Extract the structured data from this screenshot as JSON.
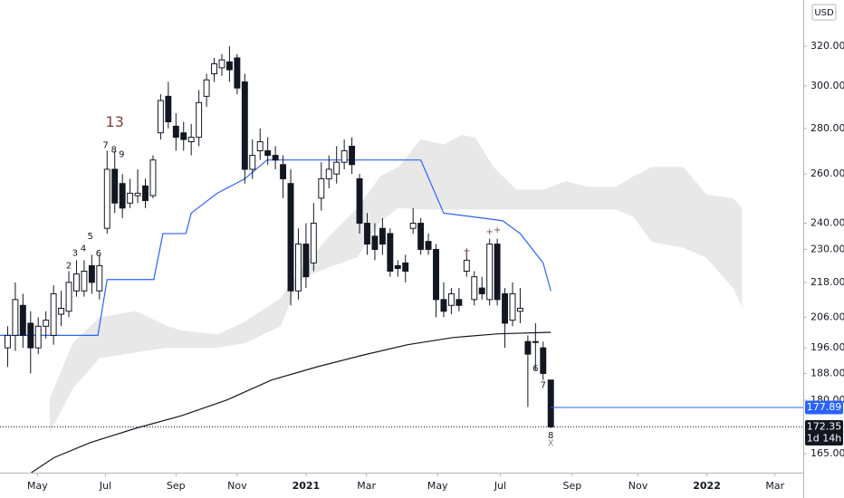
{
  "chart_data": {
    "type": "candlestick",
    "currency": "USD",
    "log_scale": true,
    "ylim": [
      160,
      345
    ],
    "yticks": [
      {
        "value": 165,
        "label": "165.00"
      },
      {
        "value": 180,
        "label": "180.00"
      },
      {
        "value": 188,
        "label": "188.00"
      },
      {
        "value": 196,
        "label": "196.00"
      },
      {
        "value": 206,
        "label": "206.00"
      },
      {
        "value": 218,
        "label": "218.00"
      },
      {
        "value": 230,
        "label": "230.00"
      },
      {
        "value": 240,
        "label": "240.00"
      },
      {
        "value": 260,
        "label": "260.00"
      },
      {
        "value": 280,
        "label": "280.00"
      },
      {
        "value": 300,
        "label": "300.00"
      },
      {
        "value": 320,
        "label": "320.00"
      }
    ],
    "xlim": [
      -1,
      104
    ],
    "xticks": [
      {
        "value": 3.9,
        "label": "May"
      },
      {
        "value": 12.8,
        "label": "Jul"
      },
      {
        "value": 22,
        "label": "Sep"
      },
      {
        "value": 30,
        "label": "Nov"
      },
      {
        "value": 39,
        "label": "2021"
      },
      {
        "value": 46.9,
        "label": "Mar"
      },
      {
        "value": 56.2,
        "label": "May"
      },
      {
        "value": 64.4,
        "label": "Jul"
      },
      {
        "value": 73.8,
        "label": "Sep"
      },
      {
        "value": 82.4,
        "label": "Nov"
      },
      {
        "value": 91.4,
        "label": "2022"
      },
      {
        "value": 100.3,
        "label": "Mar"
      }
    ],
    "up_color": "#ffffff",
    "down_color": "#131722",
    "categories": [
      null,
      null,
      null,
      null,
      null,
      null,
      null,
      null,
      null,
      null,
      null,
      null,
      null,
      null,
      null,
      null,
      null,
      null,
      null,
      null,
      null,
      null,
      null,
      null,
      null,
      null,
      null,
      null,
      null,
      null,
      null,
      null,
      null,
      null,
      null,
      null,
      null,
      null,
      null,
      null,
      null,
      null,
      null,
      null,
      null,
      null,
      null,
      null,
      null,
      null,
      null,
      null,
      null,
      null,
      null,
      null,
      null,
      null,
      null,
      null,
      null,
      null,
      null,
      null,
      null,
      null,
      null,
      null,
      null,
      null,
      null,
      null
    ],
    "open": [
      196,
      200,
      210,
      204,
      196,
      203,
      200,
      207,
      208,
      215,
      215,
      224,
      215,
      238,
      262,
      256,
      248,
      251,
      255,
      251,
      278,
      295,
      281,
      278,
      274,
      276,
      295,
      306,
      309,
      312,
      314,
      302,
      262,
      270,
      270,
      268,
      264,
      256,
      215,
      232,
      225,
      250,
      258,
      260,
      265,
      272,
      258,
      240,
      235,
      238,
      236,
      224,
      225,
      238,
      240,
      233,
      230,
      212,
      210,
      212,
      222,
      212,
      216,
      212,
      232,
      214,
      205,
      208,
      198,
      198,
      196,
      186
    ],
    "high": [
      203,
      218,
      214,
      208,
      206,
      208,
      217,
      215,
      222,
      226,
      226,
      228,
      228,
      270,
      270,
      260,
      258,
      262,
      258,
      268,
      296,
      302,
      287,
      283,
      282,
      298,
      306,
      314,
      316,
      320,
      316,
      306,
      275,
      280,
      276,
      272,
      268,
      262,
      238,
      240,
      248,
      265,
      268,
      272,
      275,
      276,
      260,
      244,
      240,
      242,
      238,
      226,
      228,
      246,
      242,
      236,
      232,
      218,
      216,
      216,
      230,
      222,
      220,
      234,
      234,
      216,
      218,
      216,
      200,
      204,
      198,
      186
    ],
    "low": [
      190,
      195,
      196,
      188,
      194,
      199,
      197,
      203,
      206,
      213,
      213,
      214,
      212,
      236,
      244,
      242,
      246,
      248,
      246,
      250,
      275,
      280,
      270,
      270,
      268,
      272,
      290,
      302,
      305,
      302,
      296,
      256,
      258,
      266,
      264,
      262,
      250,
      210,
      212,
      216,
      222,
      245,
      254,
      256,
      262,
      260,
      236,
      228,
      226,
      228,
      220,
      220,
      218,
      236,
      228,
      228,
      206,
      206,
      207,
      208,
      220,
      210,
      212,
      210,
      210,
      196,
      203,
      204,
      178,
      189,
      186,
      172
    ],
    "close": [
      200,
      212,
      200,
      196,
      203,
      205,
      214,
      209,
      218,
      221,
      222,
      218,
      224,
      262,
      248,
      246,
      252,
      252,
      249,
      266,
      293,
      283,
      276,
      275,
      276,
      292,
      303,
      311,
      313,
      308,
      299,
      262,
      268,
      274,
      268,
      266,
      258,
      215,
      232,
      220,
      240,
      258,
      262,
      265,
      270,
      264,
      240,
      232,
      230,
      232,
      222,
      223,
      222,
      240,
      230,
      230,
      212,
      208,
      214,
      210,
      226,
      220,
      214,
      232,
      212,
      204,
      214,
      209,
      194,
      198,
      188,
      172.35
    ],
    "lines": [
      {
        "color": "#2962ff",
        "x": [
          -1,
          11.8,
          13,
          19.1,
          20.3,
          23.3,
          24,
          27.4,
          31,
          33.9,
          54,
          57,
          64.7,
          67,
          70,
          71
        ],
        "values": [
          200,
          200,
          219,
          219,
          236,
          236,
          244,
          252,
          258,
          266,
          266,
          244,
          241,
          236,
          225,
          215
        ]
      },
      {
        "color": "#131722",
        "x": [
          3.1,
          6.1,
          10.8,
          16.8,
          22.7,
          28.6,
          34.5,
          40.4,
          46.3,
          52.3,
          58.2,
          64.1,
          71
        ],
        "values": [
          160,
          164,
          168,
          172,
          175.5,
          180,
          186,
          190,
          193.6,
          197,
          199.3,
          200.5,
          201
        ]
      }
    ],
    "cloud": {
      "color": "#e0e0e0",
      "x": [
        5.5,
        8.5,
        12,
        16.8,
        20.9,
        22.7,
        27.4,
        31,
        35.7,
        38.1,
        42.2,
        45.7,
        48.7,
        51.1,
        54,
        57,
        59.4,
        61.1,
        63.5,
        66.5,
        70,
        73,
        75.9,
        79.5,
        81.8,
        84.2,
        88.3,
        91.3,
        94.9,
        96
      ],
      "upper": [
        180.5,
        197.5,
        206,
        208,
        203,
        201.6,
        200.3,
        204.5,
        212.5,
        222,
        235.5,
        246,
        259,
        263,
        275,
        272.8,
        277,
        276,
        263,
        253.5,
        253.5,
        257,
        254.6,
        254.6,
        259,
        263,
        263,
        251.6,
        249.8,
        246
      ],
      "lower": [
        170.6,
        183.4,
        192.7,
        194.6,
        196,
        196,
        196,
        197.5,
        203,
        219,
        223.6,
        227,
        240.7,
        246,
        245.4,
        245.4,
        245.4,
        245.4,
        245.4,
        245.4,
        245.4,
        245.4,
        245.4,
        245.4,
        242.5,
        232.8,
        230.6,
        227,
        215.7,
        209.4
      ]
    },
    "price_lines": [
      {
        "value": 177.89,
        "color": "#2962ff",
        "from": 71,
        "style": "solid"
      },
      {
        "value": 172.35,
        "color": "#131722",
        "from": -1,
        "style": "dotted",
        "countdown": "1d 14h"
      }
    ],
    "annotations": [
      {
        "text": "2",
        "x": 8,
        "y": 224,
        "color": "#131722"
      },
      {
        "text": "3",
        "x": 8.8,
        "y": 228.7,
        "color": "#131722"
      },
      {
        "text": "4",
        "x": 9.9,
        "y": 230.3,
        "color": "#131722"
      },
      {
        "text": "5",
        "x": 10.8,
        "y": 235,
        "color": "#131722"
      },
      {
        "text": "6",
        "x": 11.9,
        "y": 228.4,
        "color": "#131722"
      },
      {
        "text": "7",
        "x": 12.8,
        "y": 272.5,
        "color": "#131722"
      },
      {
        "text": "8",
        "x": 13.9,
        "y": 270.5,
        "color": "#131722"
      },
      {
        "text": "9",
        "x": 14.9,
        "y": 268.5,
        "color": "#131722"
      },
      {
        "text": "13",
        "x": 14,
        "y": 282.7,
        "color": "#8b4040"
      },
      {
        "text": "+",
        "x": 60,
        "y": 229.4,
        "color": "#7a4a4a"
      },
      {
        "text": "+",
        "x": 63,
        "y": 236.6,
        "color": "#7a4a4a"
      },
      {
        "text": "+",
        "x": 64,
        "y": 237.3,
        "color": "#7a4a4a"
      },
      {
        "text": "6",
        "x": 69,
        "y": 189.5,
        "color": "#131722"
      },
      {
        "text": "7",
        "x": 70,
        "y": 184.4,
        "color": "#131722"
      },
      {
        "text": "8",
        "x": 71,
        "y": 170,
        "color": "#131722"
      },
      {
        "text": "X",
        "x": 71,
        "y": 167.9,
        "color": "#888888"
      }
    ]
  }
}
